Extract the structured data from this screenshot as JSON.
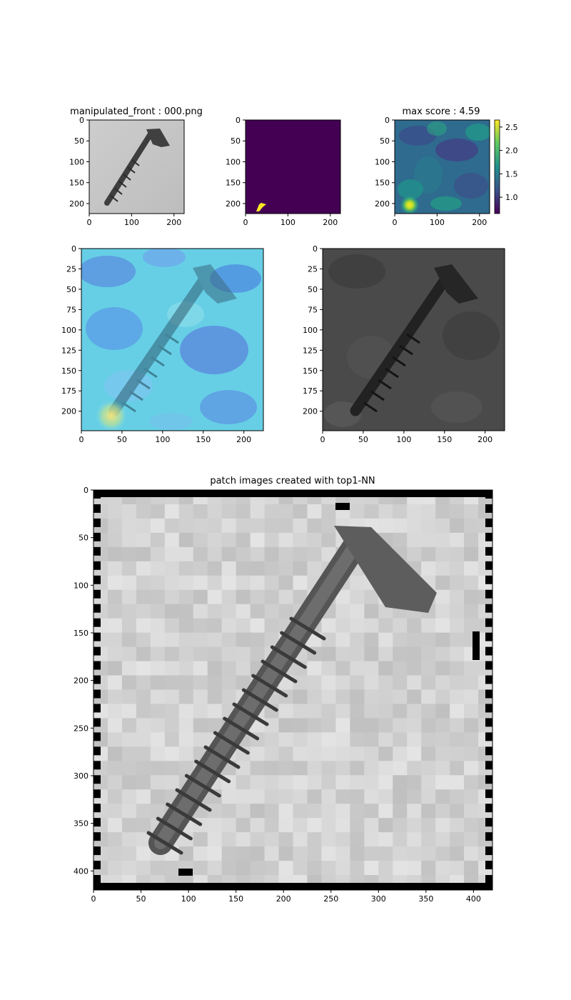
{
  "chart_data": [
    {
      "id": "p1",
      "type": "image",
      "title": "manipulated_front : 000.png",
      "xlim": [
        0,
        224
      ],
      "ylim": [
        224,
        0
      ],
      "xticks": [
        0,
        100,
        200
      ],
      "yticks": [
        0,
        50,
        100,
        150,
        200
      ],
      "content": "grayscale photo of a screw on light gray background"
    },
    {
      "id": "p2",
      "type": "heatmap",
      "title": "",
      "xlim": [
        0,
        224
      ],
      "ylim": [
        224,
        0
      ],
      "xticks": [
        0,
        100,
        200
      ],
      "yticks": [
        0,
        50,
        100,
        150,
        200
      ],
      "colormap": "viridis",
      "content": "binary mask, small yellow region near bottom-left",
      "mask_region": {
        "x": [
          24,
          46
        ],
        "y": [
          196,
          216
        ]
      }
    },
    {
      "id": "p3",
      "type": "heatmap",
      "title": "max score : 4.59",
      "xlim": [
        0,
        224
      ],
      "ylim": [
        224,
        0
      ],
      "xticks": [
        0,
        100,
        200
      ],
      "yticks": [
        0,
        50,
        100,
        150,
        200
      ],
      "colormap": "viridis",
      "colorbar": {
        "range": [
          0.65,
          2.65
        ],
        "ticks": [
          1.0,
          1.5,
          2.0,
          2.5
        ],
        "tick_labels": [
          "1.0",
          "1.5",
          "2.0",
          "2.5"
        ]
      },
      "hotspot": {
        "x": 35,
        "y": 203
      }
    },
    {
      "id": "p4",
      "type": "image",
      "title": "",
      "xlim": [
        0,
        224
      ],
      "ylim": [
        224,
        0
      ],
      "xticks": [
        0,
        50,
        100,
        150,
        200
      ],
      "yticks": [
        0,
        25,
        50,
        75,
        100,
        125,
        150,
        175,
        200
      ],
      "content": "anomaly heatmap (jet) overlaid on screw image"
    },
    {
      "id": "p5",
      "type": "image",
      "title": "",
      "xlim": [
        0,
        224
      ],
      "ylim": [
        224,
        0
      ],
      "xticks": [
        0,
        50,
        100,
        150,
        200
      ],
      "yticks": [
        0,
        25,
        50,
        75,
        100,
        125,
        150,
        175,
        200
      ],
      "content": "darkened screw image weighted by anomaly score"
    },
    {
      "id": "p6",
      "type": "image",
      "title": "patch images created with top1-NN",
      "xlim": [
        0,
        420
      ],
      "ylim": [
        420,
        0
      ],
      "xticks": [
        0,
        50,
        100,
        150,
        200,
        250,
        300,
        350,
        400
      ],
      "yticks": [
        0,
        50,
        100,
        150,
        200,
        250,
        300,
        350,
        400
      ],
      "content": "mosaic of nearest-neighbour patches forming a screw, black border cells"
    }
  ]
}
